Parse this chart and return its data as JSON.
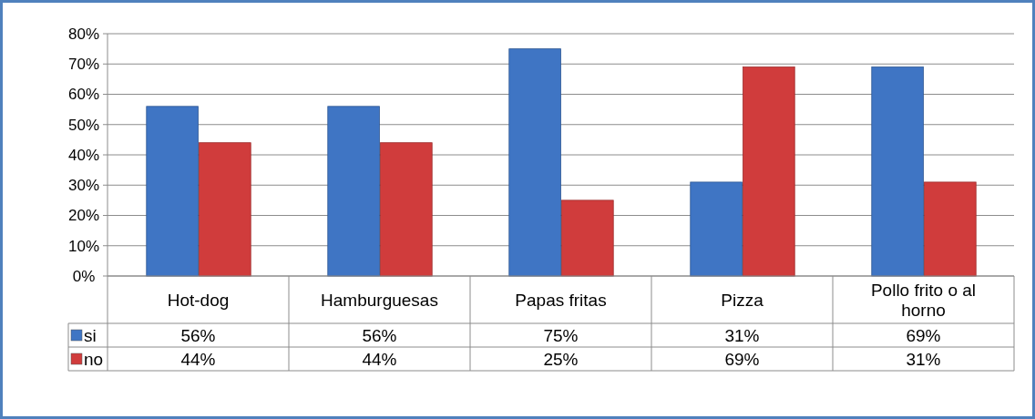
{
  "chart_data": {
    "type": "bar",
    "categories": [
      "Hot-dog",
      "Hamburguesas",
      "Papas fritas",
      "Pizza",
      "Pollo frito o al horno"
    ],
    "series": [
      {
        "name": "si",
        "color": "#3f75c4",
        "values": [
          56,
          56,
          75,
          31,
          69
        ]
      },
      {
        "name": "no",
        "color": "#d03c3c",
        "values": [
          44,
          44,
          25,
          69,
          31
        ]
      }
    ],
    "ylim": [
      0,
      80
    ],
    "yticks": [
      {
        "value": 0,
        "label": "0%"
      },
      {
        "value": 10,
        "label": "10%"
      },
      {
        "value": 20,
        "label": "20%"
      },
      {
        "value": 30,
        "label": "30%"
      },
      {
        "value": 40,
        "label": "40%"
      },
      {
        "value": 50,
        "label": "50%"
      },
      {
        "value": 60,
        "label": "60%"
      },
      {
        "value": 70,
        "label": "70%"
      },
      {
        "value": 80,
        "label": "80%"
      }
    ],
    "value_labels": [
      [
        "56%",
        "56%",
        "75%",
        "31%",
        "69%"
      ],
      [
        "44%",
        "44%",
        "25%",
        "69%",
        "31%"
      ]
    ],
    "grid": "y",
    "legend": "bottom"
  }
}
